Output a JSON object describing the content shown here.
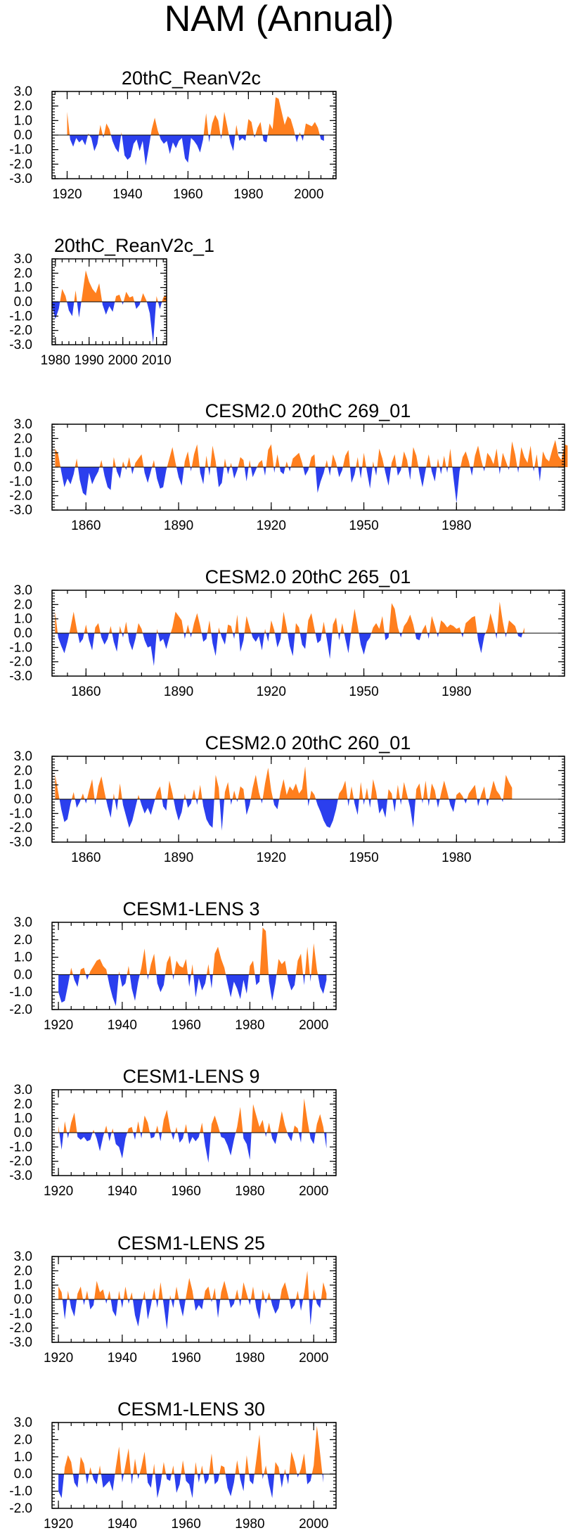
{
  "title": "NAM (Annual)",
  "colors": {
    "positive": "#FF7F1E",
    "negative": "#2B3FEE",
    "frame": "#000000"
  },
  "chart_data": [
    {
      "type": "area",
      "title": "20thC_ReanV2c",
      "x_range": [
        1915,
        2009
      ],
      "ylim": [
        -3,
        3
      ],
      "yticks": [
        "3.0",
        "2.0",
        "1.0",
        "0.0",
        "-1.0",
        "-2.0",
        "-3.0"
      ],
      "xticks": [
        1920,
        1940,
        1960,
        1980,
        2000
      ],
      "xtick_labels": [
        "1920",
        "1940",
        "1960",
        "1980",
        "2000"
      ],
      "x_start": 1920,
      "values": [
        1.6,
        -0.3,
        -0.8,
        -0.2,
        -0.5,
        -0.3,
        -0.7,
        0.1,
        -0.2,
        -1.1,
        -0.6,
        0.7,
        -0.2,
        0.8,
        0.4,
        -0.4,
        -0.9,
        -1.2,
        0.2,
        -1.4,
        -1.7,
        -1.5,
        -0.6,
        -0.3,
        -1.1,
        -0.4,
        -2.1,
        -0.9,
        0.4,
        1.2,
        0.3,
        -0.3,
        -0.6,
        -0.4,
        -1.3,
        -0.5,
        -0.9,
        -0.4,
        -0.2,
        -1.6,
        -1.9,
        -0.2,
        -0.4,
        -0.7,
        -1.2,
        -0.3,
        1.5,
        -0.5,
        0.8,
        1.4,
        1.0,
        -0.3,
        1.6,
        0.6,
        -0.5,
        -1.1,
        0.7,
        -0.4,
        -0.2,
        -0.4,
        1.1,
        0.9,
        -0.2,
        0.5,
        0.9,
        -0.4,
        -0.5,
        0.8,
        0.4,
        2.6,
        2.5,
        1.6,
        0.7,
        1.3,
        1.1,
        0.4,
        -0.5,
        0.2,
        -0.4,
        0.8,
        0.7,
        0.6,
        0.9,
        0.5,
        -0.3,
        -0.4
      ]
    },
    {
      "type": "area",
      "title": "20thC_ReanV2c_1",
      "x_range": [
        1979,
        2013
      ],
      "ylim": [
        -3,
        3
      ],
      "yticks": [
        "3.0",
        "2.0",
        "1.0",
        "0.0",
        "-1.0",
        "-2.0",
        "-3.0"
      ],
      "xticks": [
        1980,
        1990,
        2000,
        2010
      ],
      "xtick_labels": [
        "1980",
        "1990",
        "2000",
        "2010"
      ],
      "x_start": 1979,
      "values": [
        -0.3,
        -1.2,
        -0.5,
        0.9,
        0.4,
        -0.6,
        -1.0,
        0.8,
        -1.1,
        0.5,
        2.2,
        1.4,
        0.9,
        0.6,
        1.3,
        -0.2,
        -0.9,
        -0.3,
        -0.7,
        0.4,
        0.5,
        -0.2,
        0.7,
        0.3,
        0.4,
        -0.5,
        -0.2,
        0.6,
        0.1,
        -0.8,
        -2.9,
        0.4,
        -0.5,
        0.3,
        0.5
      ]
    },
    {
      "type": "area",
      "title": "CESM2.0 20thC 269_01",
      "x_range": [
        1849,
        2015
      ],
      "ylim": [
        -3,
        3
      ],
      "yticks": [
        "3.0",
        "2.0",
        "1.0",
        "0.0",
        "-1.0",
        "-2.0",
        "-3.0"
      ],
      "xticks": [
        1860,
        1890,
        1920,
        1950,
        1980
      ],
      "xtick_labels": [
        "1860",
        "1890",
        "1920",
        "1950",
        "1980"
      ],
      "x_start": 1850,
      "values": [
        1.3,
        0.9,
        -0.3,
        -1.4,
        -0.8,
        -1.2,
        -0.5,
        0.6,
        -0.9,
        -1.8,
        -2.0,
        -0.4,
        -1.2,
        -0.7,
        -0.3,
        0.5,
        -0.6,
        -1.4,
        -1.6,
        0.7,
        -0.3,
        -0.8,
        0.4,
        -0.2,
        0.7,
        -0.5,
        0.3,
        0.6,
        0.9,
        -0.4,
        -1.1,
        -0.3,
        0.5,
        -0.8,
        -1.5,
        -1.4,
        -0.2,
        0.6,
        1.4,
        0.3,
        -0.7,
        -1.3,
        0.4,
        1.1,
        -0.3,
        0.9,
        1.6,
        -0.4,
        -1.2,
        0.8,
        -0.6,
        1.5,
        0.4,
        -1.4,
        -1.1,
        0.6,
        -0.5,
        0.3,
        -0.8,
        -0.2,
        0.7,
        0.5,
        -1.0,
        0.5,
        -0.7,
        -0.2,
        0.3,
        0.5,
        -0.6,
        1.2,
        1.6,
        -0.4,
        0.9,
        -0.3,
        -0.5,
        0.4,
        -0.3,
        0.6,
        0.8,
        1.0,
        0.3,
        -0.6,
        -0.2,
        0.7,
        0.9,
        -1.8,
        -1.0,
        -0.4,
        0.5,
        -0.6,
        0.9,
        0.3,
        -0.7,
        -0.2,
        0.8,
        1.2,
        -1.1,
        -0.5,
        0.7,
        -0.8,
        1.0,
        -0.3,
        -1.5,
        0.4,
        -0.6,
        1.3,
        0.6,
        -0.4,
        -1.3,
        0.3,
        0.9,
        -0.6,
        -0.2,
        1.1,
        0.5,
        -0.9,
        1.4,
        0.8,
        -0.4,
        -1.4,
        -0.2,
        0.9,
        -0.3,
        -1.0,
        0.6,
        -0.5,
        0.8,
        -0.4,
        1.3,
        -0.7,
        -2.5,
        -0.3,
        0.7,
        1.1,
        0.4,
        -0.6,
        0.8,
        1.5,
        0.5,
        -0.3,
        1.0,
        0.7,
        0.2,
        1.3,
        -0.5,
        1.0,
        0.4,
        -0.2,
        1.8,
        0.9,
        -0.4,
        1.4,
        0.7,
        0.3,
        1.5,
        -0.3,
        0.9,
        -1.0,
        1.1,
        0.6,
        0.4,
        1.2,
        1.9,
        0.8,
        0.5,
        1.6,
        1.5
      ]
    },
    {
      "type": "area",
      "title": "CESM2.0 20thC 265_01",
      "x_range": [
        1849,
        2015
      ],
      "ylim": [
        -3,
        3
      ],
      "yticks": [
        "3.0",
        "2.0",
        "1.0",
        "0.0",
        "-1.0",
        "-2.0",
        "-3.0"
      ],
      "xticks": [
        1860,
        1890,
        1920,
        1950,
        1980
      ],
      "xtick_labels": [
        "1860",
        "1890",
        "1920",
        "1950",
        "1980"
      ],
      "x_start": 1850,
      "values": [
        1.5,
        -0.3,
        -0.9,
        -1.4,
        -0.6,
        0.4,
        1.5,
        0.3,
        -0.7,
        -0.4,
        0.6,
        -0.5,
        -1.2,
        0.4,
        0.7,
        -0.3,
        -0.8,
        -0.4,
        0.5,
        -0.6,
        -1.3,
        0.5,
        -0.3,
        0.8,
        -0.6,
        -1.2,
        -0.4,
        0.7,
        0.3,
        -0.5,
        -1.0,
        -0.9,
        -2.3,
        0.3,
        -0.6,
        -0.4,
        -1.1,
        -0.3,
        0.4,
        1.5,
        1.2,
        0.9,
        -0.4,
        0.6,
        -0.3,
        0.7,
        1.4,
        0.5,
        -0.6,
        -0.4,
        0.9,
        -0.7,
        -1.6,
        0.4,
        -0.3,
        -0.8,
        0.6,
        0.5,
        -0.4,
        1.3,
        -1.3,
        -0.5,
        1.2,
        0.4,
        -0.3,
        -0.6,
        -0.2,
        -1.2,
        0.3,
        -0.6,
        0.9,
        0.2,
        -1.0,
        -0.4,
        1.5,
        0.4,
        -0.9,
        -1.6,
        0.7,
        0.4,
        -0.8,
        -1.1,
        0.9,
        1.4,
        0.3,
        -0.7,
        -0.5,
        0.8,
        -0.4,
        -1.8,
        0.6,
        1.1,
        -0.5,
        0.7,
        -0.4,
        -1.4,
        0.3,
        1.7,
        0.5,
        -0.8,
        -1.5,
        -0.6,
        -0.3,
        0.4,
        0.7,
        0.3,
        1.2,
        -0.5,
        -0.3,
        2.1,
        1.7,
        0.4,
        -0.3,
        0.5,
        0.8,
        1.3,
        0.6,
        -0.4,
        -0.5,
        0.2,
        0.6,
        -0.4,
        1.2,
        0.5,
        -0.3,
        0.9,
        0.7,
        0.4,
        0.6,
        0.5,
        0.3,
        0.4,
        -0.3,
        0.7,
        0.9,
        1.1,
        1.2,
        -0.5,
        -1.4,
        -0.2,
        0.3,
        1.4,
        0.6,
        -0.4,
        2.2,
        0.8,
        -0.3,
        0.9,
        0.7,
        0.5,
        -0.2,
        -0.3,
        0.4
      ]
    },
    {
      "type": "area",
      "title": "CESM2.0 20thC 260_01",
      "x_range": [
        1849,
        2015
      ],
      "ylim": [
        -3,
        3
      ],
      "yticks": [
        "3.0",
        "2.0",
        "1.0",
        "0.0",
        "-1.0",
        "-2.0",
        "-3.0"
      ],
      "xticks": [
        1860,
        1890,
        1920,
        1950,
        1980
      ],
      "xtick_labels": [
        "1860",
        "1890",
        "1920",
        "1950",
        "1980"
      ],
      "x_start": 1850,
      "values": [
        1.7,
        0.5,
        -0.7,
        -1.6,
        -1.4,
        -0.3,
        0.5,
        -0.6,
        -0.2,
        0.4,
        -0.3,
        0.6,
        1.4,
        -0.4,
        0.9,
        1.6,
        0.5,
        -0.5,
        -1.3,
        0.4,
        -0.8,
        1.1,
        -0.4,
        -1.2,
        -2.0,
        -1.5,
        -0.6,
        0.3,
        -0.4,
        -1.0,
        -0.6,
        -1.1,
        -0.3,
        0.5,
        0.9,
        -0.5,
        -0.8,
        1.3,
        0.4,
        -0.7,
        -1.5,
        -0.9,
        0.4,
        -0.6,
        -0.3,
        0.7,
        -0.4,
        1.0,
        -0.5,
        -1.4,
        -1.8,
        -2.0,
        1.7,
        0.8,
        -2.2,
        0.5,
        1.2,
        -0.4,
        0.6,
        -0.2,
        0.9,
        0.7,
        -1.1,
        -0.4,
        0.8,
        1.7,
        0.5,
        -0.3,
        1.1,
        2.2,
        0.6,
        -0.4,
        -0.7,
        0.5,
        1.4,
        0.3,
        0.9,
        0.6,
        1.1,
        0.4,
        0.7,
        2.3,
        -0.5,
        0.6,
        0.3,
        -0.4,
        -0.9,
        -1.5,
        -1.9,
        -2.0,
        -1.5,
        -0.7,
        0.4,
        0.7,
        1.3,
        -0.5,
        0.9,
        -0.3,
        -1.1,
        1.2,
        -0.4,
        0.8,
        -0.6,
        1.4,
        0.5,
        -1.0,
        -0.6,
        -1.3,
        0.7,
        0.4,
        -0.9,
        1.0,
        -0.4,
        1.2,
        0.3,
        -0.6,
        -2.0,
        0.7,
        1.1,
        -0.3,
        1.3,
        -0.5,
        1.1,
        0.6,
        -0.6,
        0.4,
        1.3,
        0.5,
        -0.4,
        -0.9,
        0.3,
        0.5,
        0.2,
        -0.3,
        0.4,
        0.7,
        1.0,
        -0.5,
        0.3,
        0.9,
        -0.5,
        0.4,
        1.3,
        0.6,
        0.3,
        -0.2,
        1.7,
        1.2,
        0.8
      ]
    },
    {
      "type": "area",
      "title": "CESM1-LENS 3",
      "x_range": [
        1918,
        2007
      ],
      "ylim": [
        -2,
        3
      ],
      "yticks": [
        "3.0",
        "2.0",
        "1.0",
        "0.0",
        "-1.0",
        "-2.0"
      ],
      "xticks": [
        1920,
        1940,
        1960,
        1980,
        2000
      ],
      "xtick_labels": [
        "1920",
        "1940",
        "1960",
        "1980",
        "2000"
      ],
      "x_start": 1920,
      "values": [
        -1.0,
        -1.6,
        -1.5,
        -0.6,
        0.4,
        -0.3,
        -0.7,
        0.3,
        0.4,
        -0.3,
        0.2,
        0.5,
        0.8,
        0.9,
        0.5,
        0.3,
        -0.6,
        -1.3,
        -1.8,
        0.2,
        -0.7,
        -0.5,
        0.5,
        -0.8,
        -1.5,
        -0.4,
        0.4,
        1.5,
        -0.3,
        0.6,
        1.2,
        -0.5,
        -1.0,
        -0.6,
        0.7,
        1.1,
        -0.3,
        0.8,
        0.5,
        0.4,
        0.9,
        -0.7,
        0.6,
        -1.3,
        -0.2,
        -0.9,
        -0.5,
        0.6,
        -0.8,
        1.2,
        1.6,
        0.9,
        0.4,
        -0.5,
        -1.3,
        -0.4,
        -0.8,
        -1.4,
        -0.3,
        -1.1,
        0.5,
        0.8,
        -0.6,
        -0.4,
        2.7,
        2.5,
        -0.4,
        -1.5,
        -0.5,
        0.9,
        0.6,
        0.8,
        -0.3,
        -0.9,
        -0.6,
        0.8,
        1.2,
        -0.6,
        1.6,
        -0.4,
        1.8,
        0.3,
        -0.7,
        -1.1,
        -0.3
      ]
    },
    {
      "type": "area",
      "title": "CESM1-LENS 9",
      "x_range": [
        1918,
        2007
      ],
      "ylim": [
        -3,
        3
      ],
      "yticks": [
        "3.0",
        "2.0",
        "1.0",
        "0.0",
        "-1.0",
        "-2.0",
        "-3.0"
      ],
      "xticks": [
        1920,
        1940,
        1960,
        1980,
        2000
      ],
      "xtick_labels": [
        "1920",
        "1940",
        "1960",
        "1980",
        "2000"
      ],
      "x_start": 1920,
      "values": [
        0.5,
        -1.2,
        0.8,
        -0.4,
        0.7,
        1.4,
        -0.3,
        -0.5,
        -0.3,
        -0.6,
        -0.5,
        0.2,
        -0.4,
        -1.3,
        -0.3,
        0.5,
        -0.6,
        0.3,
        -0.8,
        -1.0,
        -1.8,
        -0.4,
        0.3,
        0.4,
        -0.5,
        0.8,
        -0.4,
        1.2,
        0.7,
        -0.4,
        -0.3,
        0.5,
        -0.6,
        0.9,
        1.6,
        0.3,
        -0.5,
        0.4,
        -0.7,
        -0.4,
        0.6,
        -0.8,
        -0.3,
        -0.6,
        -0.3,
        0.7,
        -0.9,
        -2.1,
        0.6,
        1.2,
        0.5,
        -0.3,
        -0.4,
        -0.9,
        -1.6,
        -0.5,
        0.4,
        1.8,
        -0.4,
        -0.8,
        -1.9,
        2.0,
        1.2,
        0.4,
        0.9,
        -0.3,
        0.7,
        -0.4,
        -0.8,
        0.3,
        1.5,
        0.5,
        -0.2,
        -0.6,
        0.5,
        0.3,
        -0.7,
        2.4,
        0.9,
        -0.4,
        -0.8,
        0.6,
        1.3,
        0.4,
        -1.1
      ]
    },
    {
      "type": "area",
      "title": "CESM1-LENS 25",
      "x_range": [
        1918,
        2007
      ],
      "ylim": [
        -3,
        3
      ],
      "yticks": [
        "3.0",
        "2.0",
        "1.0",
        "0.0",
        "-1.0",
        "-2.0",
        "-3.0"
      ],
      "xticks": [
        1920,
        1940,
        1960,
        1980,
        2000
      ],
      "xtick_labels": [
        "1920",
        "1940",
        "1960",
        "1980",
        "2000"
      ],
      "x_start": 1920,
      "values": [
        0.9,
        0.5,
        -1.4,
        0.6,
        -0.6,
        -1.2,
        0.4,
        0.9,
        -0.4,
        0.6,
        -0.7,
        -0.4,
        1.3,
        0.5,
        0.7,
        -0.3,
        0.6,
        -0.8,
        -1.2,
        0.6,
        -0.6,
        0.9,
        -0.3,
        0.5,
        -1.1,
        -1.9,
        -0.5,
        0.6,
        -1.4,
        -0.4,
        0.8,
        -0.6,
        1.2,
        -0.4,
        -2.1,
        0.3,
        -0.6,
        0.9,
        -0.3,
        -1.2,
        0.2,
        1.5,
        0.6,
        -0.8,
        -0.4,
        -0.7,
        0.6,
        0.9,
        -0.2,
        0.8,
        -1.3,
        0.5,
        1.3,
        0.4,
        -0.6,
        -0.3,
        0.7,
        -0.5,
        1.2,
        0.4,
        -0.4,
        0.9,
        -0.6,
        -1.4,
        0.7,
        -0.3,
        0.5,
        -0.4,
        -1.0,
        -0.6,
        0.7,
        1.2,
        0.3,
        -0.7,
        -0.4,
        0.6,
        -0.8,
        0.4,
        2.0,
        -1.8,
        0.7,
        -0.3,
        -0.6,
        1.2,
        0.4
      ]
    },
    {
      "type": "area",
      "title": "CESM1-LENS 30",
      "x_range": [
        1918,
        2007
      ],
      "ylim": [
        -2,
        3
      ],
      "yticks": [
        "3.0",
        "2.0",
        "1.0",
        "0.0",
        "-1.0",
        "-2.0"
      ],
      "xticks": [
        1920,
        1940,
        1960,
        1980,
        2000
      ],
      "xtick_labels": [
        "1920",
        "1940",
        "1960",
        "1980",
        "2000"
      ],
      "x_start": 1920,
      "values": [
        -1.0,
        -1.4,
        0.4,
        1.1,
        0.7,
        -0.5,
        -0.8,
        1.0,
        0.6,
        -0.6,
        0.4,
        -0.3,
        -0.6,
        0.5,
        -0.8,
        -0.6,
        -0.4,
        -1.0,
        0.4,
        1.6,
        -0.5,
        0.5,
        1.5,
        -0.6,
        0.9,
        -0.3,
        0.4,
        1.3,
        -0.5,
        -0.8,
        0.6,
        -1.4,
        -0.6,
        0.7,
        -0.3,
        -0.4,
        0.5,
        -1.1,
        -0.6,
        0.8,
        -0.4,
        -0.6,
        -1.4,
        0.7,
        -0.5,
        0.5,
        -0.6,
        -0.3,
        1.2,
        -0.6,
        -0.4,
        0.5,
        0.4,
        -0.8,
        -1.3,
        -0.5,
        0.8,
        -0.3,
        -1.0,
        1.1,
        -0.4,
        -0.6,
        0.8,
        2.3,
        -0.3,
        0.5,
        -0.6,
        -1.4,
        0.7,
        0.4,
        -0.8,
        0.3,
        -0.6,
        1.3,
        0.7,
        -0.2,
        0.3,
        1.2,
        -0.6,
        -0.4,
        0.5,
        2.8,
        1.2,
        -0.5
      ]
    }
  ]
}
